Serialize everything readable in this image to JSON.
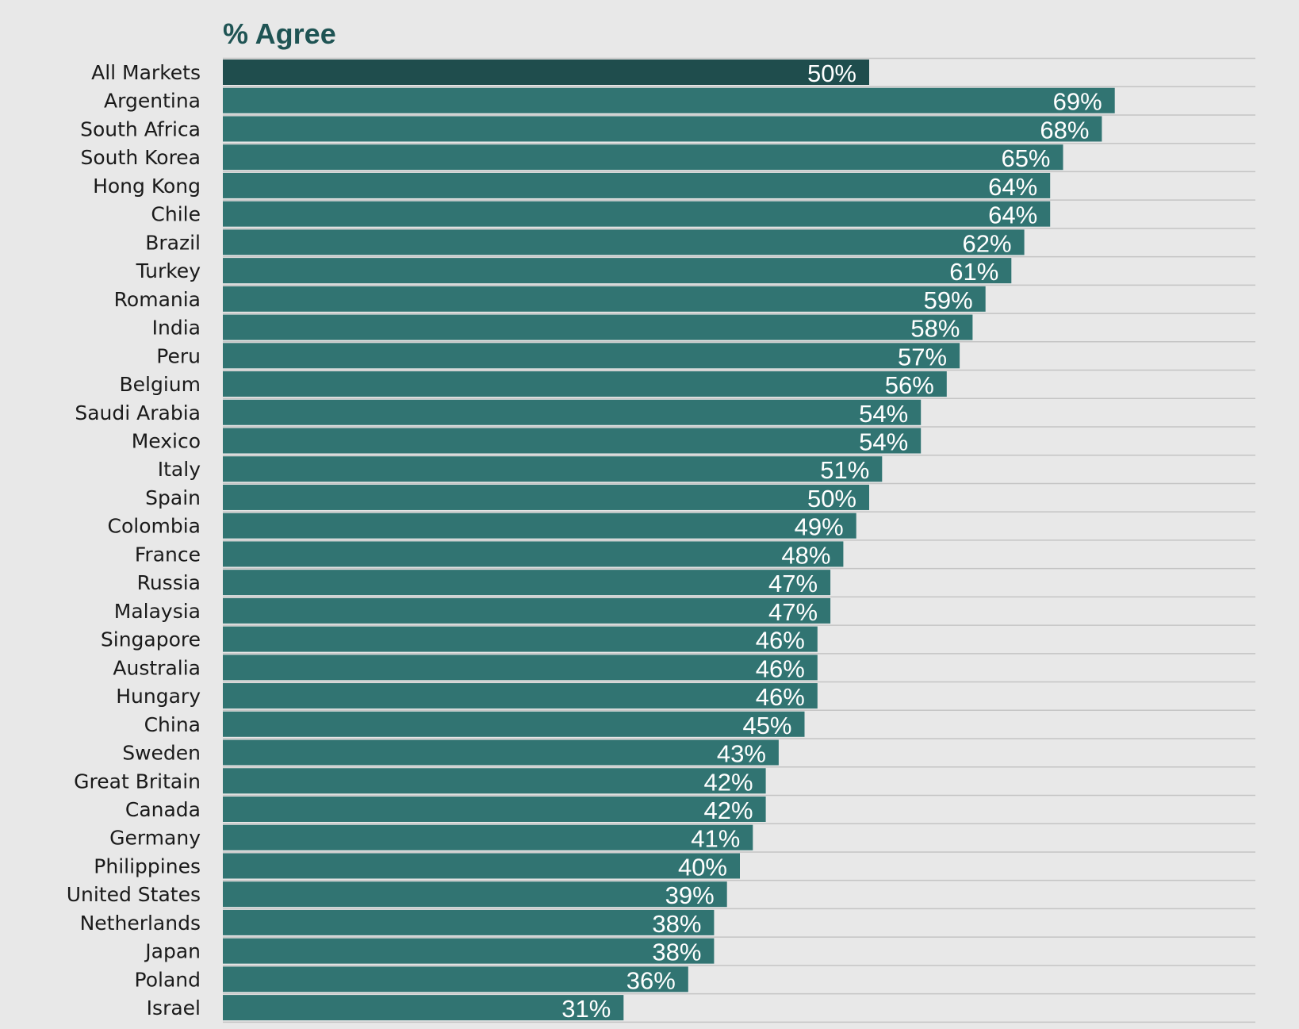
{
  "chart_data": {
    "type": "bar",
    "orientation": "horizontal",
    "title": "% Agree",
    "categories": [
      "All Markets",
      "Argentina",
      "South Africa",
      "South Korea",
      "Hong Kong",
      "Chile",
      "Brazil",
      "Turkey",
      "Romania",
      "India",
      "Peru",
      "Belgium",
      "Saudi Arabia",
      "Mexico",
      "Italy",
      "Spain",
      "Colombia",
      "France",
      "Russia",
      "Malaysia",
      "Singapore",
      "Australia",
      "Hungary",
      "China",
      "Sweden",
      "Great Britain",
      "Canada",
      "Germany",
      "Philippines",
      "United States",
      "Netherlands",
      "Japan",
      "Poland",
      "Israel"
    ],
    "values": [
      50,
      69,
      68,
      65,
      64,
      64,
      62,
      61,
      59,
      58,
      57,
      56,
      54,
      54,
      51,
      50,
      49,
      48,
      47,
      47,
      46,
      46,
      46,
      45,
      43,
      42,
      42,
      41,
      40,
      39,
      38,
      38,
      36,
      31
    ],
    "value_labels": [
      "50%",
      "69%",
      "68%",
      "65%",
      "64%",
      "64%",
      "62%",
      "61%",
      "59%",
      "58%",
      "57%",
      "56%",
      "54%",
      "54%",
      "51%",
      "50%",
      "49%",
      "48%",
      "47%",
      "47%",
      "46%",
      "46%",
      "46%",
      "45%",
      "43%",
      "42%",
      "42%",
      "41%",
      "40%",
      "39%",
      "38%",
      "38%",
      "36%",
      "31%"
    ],
    "xlim": [
      0,
      80
    ],
    "grid": "horizontal row separators",
    "colors": {
      "highlight_bar": "#1f4d4d",
      "bar": "#317472",
      "background": "#e8e8e8",
      "title": "#1f5454",
      "separator": "#c4c4c4"
    }
  }
}
